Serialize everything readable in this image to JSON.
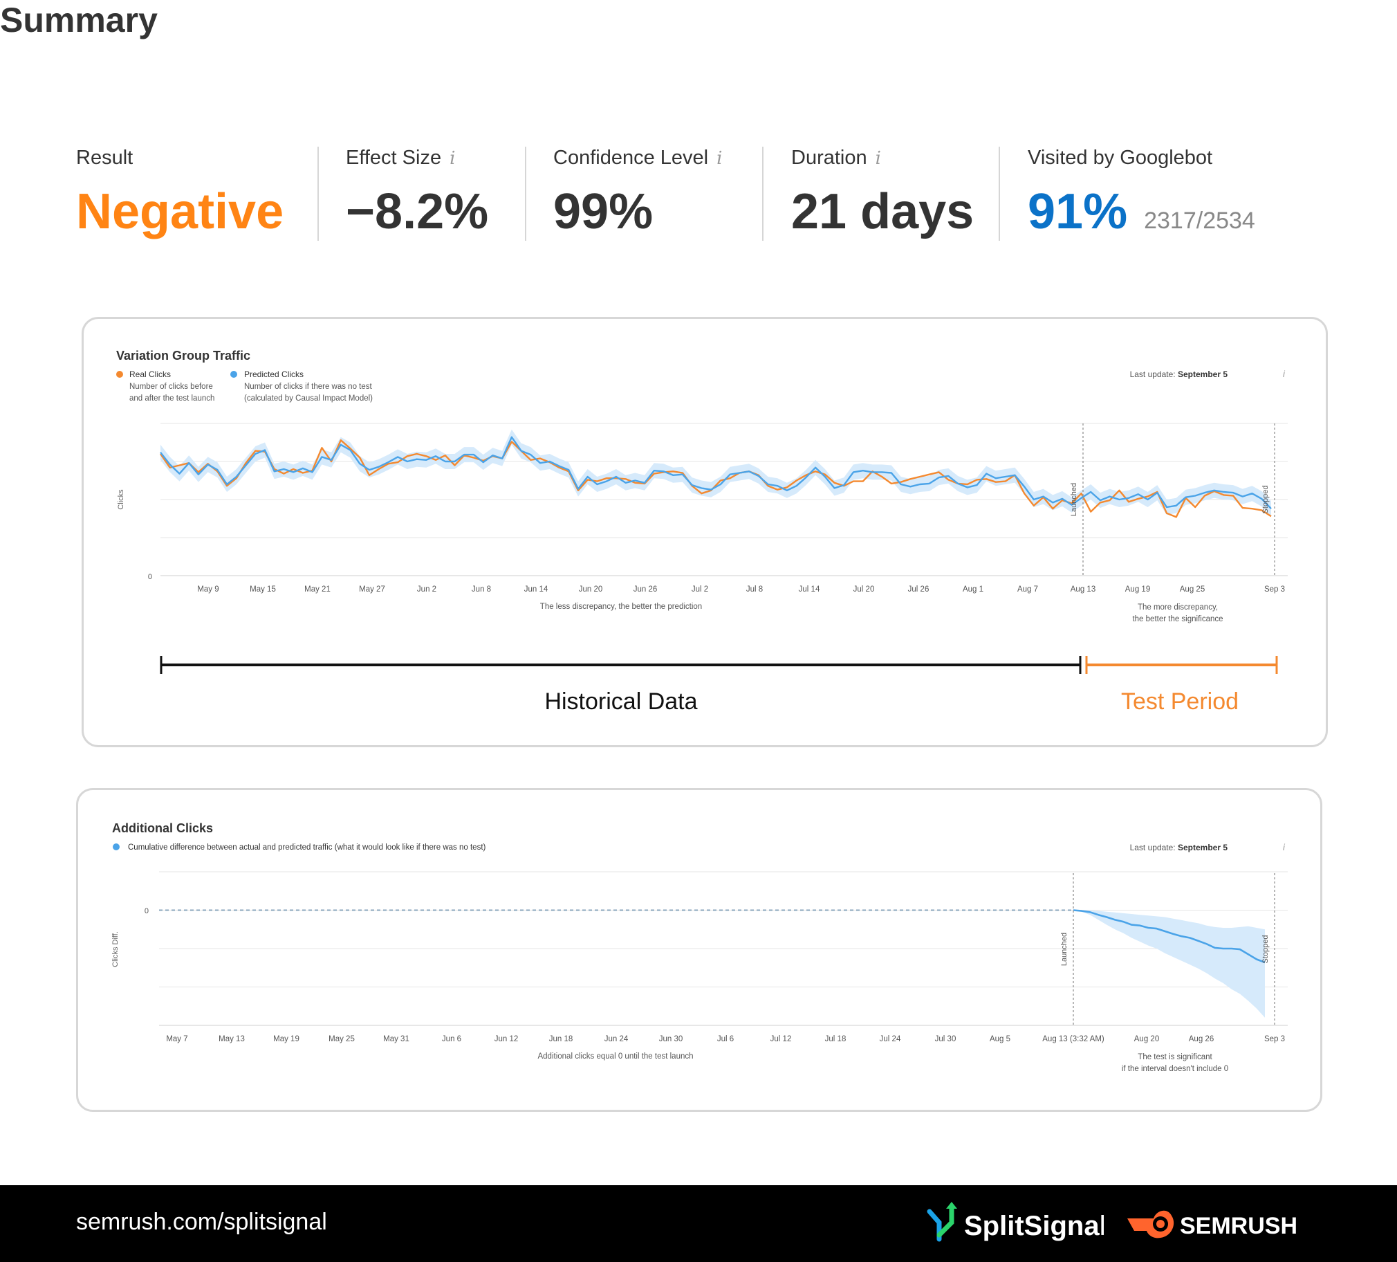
{
  "summary": {
    "title": "Summary",
    "metrics": [
      {
        "label": "Result",
        "value": "Negative",
        "color": "#ff8414"
      },
      {
        "label": "Effect Size",
        "value": "−8.2%",
        "info": "i"
      },
      {
        "label": "Confidence Level",
        "value": "99%",
        "info": "i"
      },
      {
        "label": "Duration",
        "value": "21 days",
        "info": "i"
      },
      {
        "label": "Visited by Googlebot",
        "value": "91%",
        "sub": "2317/2534",
        "color": "#0b72c8"
      }
    ]
  },
  "colors": {
    "real": "#f4892f",
    "predicted": "#4aa3e8",
    "band": "#d6eafb",
    "accent": "#ff8414"
  },
  "chart_data": [
    {
      "type": "line",
      "title": "Variation Group Traffic",
      "ylabel": "Clicks",
      "legend": [
        {
          "name": "Real Clicks",
          "desc1": "Number of clicks before",
          "desc2": "and after the test launch"
        },
        {
          "name": "Predicted Clicks",
          "desc1": "Number of clicks if there was no test",
          "desc2": "(calculated by Causal Impact Model)"
        }
      ],
      "last_update_label": "Last update:",
      "last_update_date": "September 5",
      "y_tick": "0",
      "x_ticks": [
        "May 9",
        "May 15",
        "May 21",
        "May 27",
        "Jun 2",
        "Jun 8",
        "Jun 14",
        "Jun 20",
        "Jun 26",
        "Jul 2",
        "Jul 8",
        "Jul 14",
        "Jul 20",
        "Jul 26",
        "Aug 1",
        "Aug 7",
        "Aug 13",
        "Aug 19",
        "Aug 25",
        "Sep 3"
      ],
      "launched_label": "Launched",
      "stopped_label": "Stopped",
      "note_left": "The less discrepancy, the better the prediction",
      "note_right_1": "The more discrepancy,",
      "note_right_2": "the better the significance",
      "ylim": [
        0,
        200
      ],
      "series": [
        {
          "name": "Real Clicks",
          "values": [
            160,
            142,
            145,
            148,
            136,
            147,
            137,
            118,
            128,
            148,
            164,
            163,
            140,
            134,
            140,
            135,
            138,
            168,
            150,
            178,
            167,
            155,
            132,
            140,
            147,
            149,
            157,
            160,
            157,
            152,
            158,
            145,
            158,
            155,
            151,
            157,
            154,
            176,
            164,
            152,
            154,
            149,
            142,
            137,
            112,
            126,
            124,
            128,
            128,
            127,
            122,
            121,
            134,
            136,
            137,
            135,
            118,
            108,
            112,
            125,
            128,
            135,
            137,
            132,
            118,
            113,
            116,
            125,
            132,
            137,
            133,
            122,
            118,
            124,
            124,
            137,
            130,
            121,
            123,
            127,
            130,
            133,
            136,
            126,
            121,
            120,
            126,
            127,
            123,
            124,
            132,
            108,
            92,
            103,
            88,
            99,
            95,
            108,
            84,
            96,
            99,
            112,
            97,
            101,
            104,
            110,
            82,
            77,
            102,
            90,
            105,
            111,
            106,
            105,
            89,
            88,
            86,
            78
          ]
        },
        {
          "name": "Predicted Clicks",
          "values": [
            162,
            146,
            134,
            148,
            133,
            146,
            139,
            120,
            130,
            145,
            160,
            165,
            137,
            140,
            136,
            141,
            136,
            156,
            152,
            172,
            165,
            147,
            139,
            143,
            149,
            156,
            150,
            153,
            152,
            157,
            150,
            150,
            159,
            159,
            149,
            158,
            154,
            182,
            164,
            159,
            148,
            150,
            144,
            139,
            114,
            130,
            120,
            124,
            130,
            122,
            125,
            122,
            138,
            137,
            132,
            133,
            119,
            115,
            113,
            120,
            133,
            135,
            137,
            131,
            120,
            118,
            112,
            118,
            129,
            142,
            130,
            115,
            119,
            136,
            138,
            136,
            136,
            135,
            120,
            117,
            120,
            121,
            129,
            131,
            121,
            116,
            119,
            134,
            128,
            130,
            132,
            117,
            100,
            104,
            96,
            101,
            93,
            102,
            110,
            99,
            104,
            100,
            102,
            107,
            100,
            109,
            90,
            92,
            103,
            105,
            109,
            112,
            110,
            109,
            104,
            108,
            101,
            88
          ]
        }
      ],
      "band_halfwidth": 10
    },
    {
      "type": "area",
      "title": "Additional Clicks",
      "ylabel": "Clicks Diff.",
      "legend": [
        {
          "name": "Cumulative difference between actual and predicted traffic (what it would look like if there was no test)"
        }
      ],
      "last_update_label": "Last update:",
      "last_update_date": "September 5",
      "y_tick": "0",
      "x_ticks": [
        "May 7",
        "May 13",
        "May 19",
        "May 25",
        "May 31",
        "Jun 6",
        "Jun 12",
        "Jun 18",
        "Jun 24",
        "Jun 30",
        "Jul 6",
        "Jul 12",
        "Jul 18",
        "Jul 24",
        "Jul 30",
        "Aug 5",
        "Aug 13 (3:32 AM)",
        "Aug 20",
        "Aug 26",
        "Sep 3"
      ],
      "launched_label": "Launched",
      "stopped_label": "Stopped",
      "note_left": "Additional clicks equal 0 until the test launch",
      "note_right_1": "The test is significant",
      "note_right_2": "if the interval doesn't include 0",
      "ylim": [
        -300,
        100
      ],
      "series": [
        {
          "name": "Cumulative difference",
          "values": [
            0,
            -2,
            -5,
            -12,
            -18,
            -25,
            -30,
            -38,
            -40,
            -46,
            -48,
            -55,
            -62,
            -68,
            -72,
            -80,
            -88,
            -98,
            -100,
            -100,
            -102,
            -115,
            -128,
            -136
          ]
        }
      ],
      "band_low": [
        0,
        -4,
        -12,
        -25,
        -38,
        -50,
        -60,
        -72,
        -82,
        -92,
        -100,
        -112,
        -122,
        -132,
        -142,
        -152,
        -164,
        -178,
        -190,
        -206,
        -218,
        -236,
        -256,
        -280
      ],
      "band_high": [
        0,
        0,
        -1,
        -2,
        -4,
        -6,
        -8,
        -10,
        -12,
        -14,
        -16,
        -18,
        -22,
        -26,
        -30,
        -34,
        -40,
        -44,
        -46,
        -46,
        -44,
        -42,
        -46,
        -50
      ]
    }
  ],
  "annotations": {
    "historical_label": "Historical Data",
    "test_label": "Test Period"
  },
  "footer": {
    "url": "semrush.com/splitsignal",
    "brand1": "SplitSignal",
    "brand2": "SEMRUSH"
  }
}
